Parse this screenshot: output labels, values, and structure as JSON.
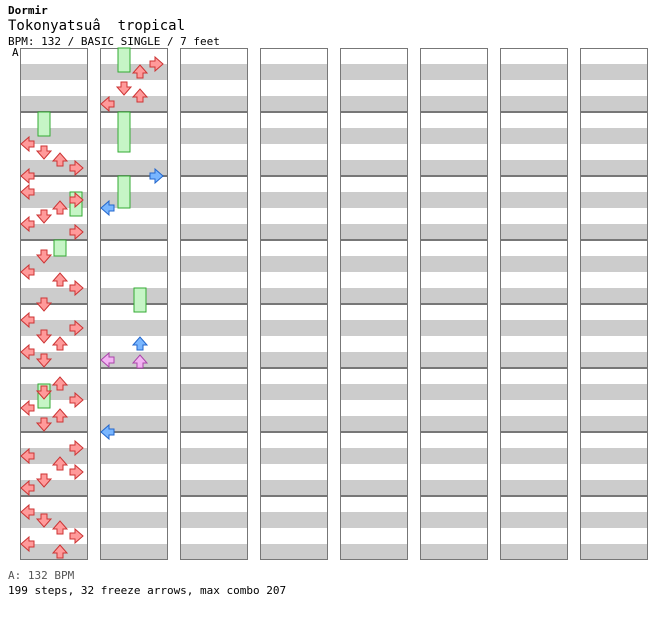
{
  "header": {
    "artist": "Dormir",
    "title": "Tokonyatsuâ  tropical",
    "meta": "BPM: 132 / BASIC SINGLE / 7 feet",
    "marker": "A"
  },
  "footer": {
    "bpm_legend": "A: 132 BPM",
    "stats": "199 steps, 32 freeze arrows, max combo 207"
  },
  "colors": {
    "quarter": "#ff9a9a",
    "eighth": "#79b6ff",
    "sixteenth": "#f3b3f3",
    "freeze": "#c6f5c6",
    "freeze_border": "#33aa33",
    "stripe": "#cccccc"
  },
  "chart_data": {
    "type": "step-chart",
    "columns": 8,
    "measures_per_column": 8,
    "lanes": [
      "left",
      "down",
      "up",
      "right"
    ],
    "notes": [
      [
        1,
        12,
        "L",
        "q"
      ],
      [
        1,
        16,
        "D",
        "q"
      ],
      [
        1,
        20,
        "U",
        "q"
      ],
      [
        1,
        24,
        "R",
        "q"
      ],
      [
        1,
        28,
        "L",
        "q"
      ],
      [
        2,
        4,
        "L",
        "q"
      ],
      [
        2,
        8,
        "R",
        "q"
      ],
      [
        2,
        12,
        "U",
        "q"
      ],
      [
        2,
        16,
        "D",
        "q"
      ],
      [
        2,
        20,
        "L",
        "q"
      ],
      [
        2,
        24,
        "R",
        "q"
      ],
      [
        3,
        4,
        "D",
        "q"
      ],
      [
        3,
        12,
        "L",
        "q"
      ],
      [
        3,
        16,
        "U",
        "q"
      ],
      [
        3,
        20,
        "R",
        "q"
      ],
      [
        3,
        28,
        "D",
        "q"
      ],
      [
        4,
        4,
        "L",
        "q"
      ],
      [
        4,
        8,
        "R",
        "q"
      ],
      [
        4,
        12,
        "D",
        "q"
      ],
      [
        4,
        16,
        "U",
        "q"
      ],
      [
        4,
        20,
        "L",
        "q"
      ],
      [
        4,
        24,
        "D",
        "q"
      ],
      [
        5,
        4,
        "U",
        "q"
      ],
      [
        5,
        8,
        "D",
        "q"
      ],
      [
        5,
        12,
        "R",
        "q"
      ],
      [
        5,
        16,
        "L",
        "q"
      ],
      [
        5,
        20,
        "U",
        "q"
      ],
      [
        5,
        24,
        "D",
        "q"
      ],
      [
        6,
        4,
        "R",
        "q"
      ],
      [
        6,
        8,
        "L",
        "q"
      ],
      [
        6,
        12,
        "U",
        "q"
      ],
      [
        6,
        16,
        "R",
        "q"
      ],
      [
        6,
        20,
        "D",
        "q"
      ],
      [
        6,
        24,
        "L",
        "q"
      ],
      [
        7,
        4,
        "L",
        "q"
      ],
      [
        7,
        8,
        "D",
        "q"
      ],
      [
        7,
        12,
        "U",
        "q"
      ],
      [
        7,
        16,
        "R",
        "q"
      ],
      [
        7,
        20,
        "L",
        "q"
      ],
      [
        7,
        24,
        "U",
        "q"
      ],
      [
        8,
        4,
        "R",
        "q"
      ],
      [
        8,
        8,
        "U",
        "q"
      ],
      [
        8,
        16,
        "D",
        "q"
      ],
      [
        8,
        20,
        "U",
        "q"
      ],
      [
        8,
        24,
        "L",
        "q"
      ]
    ],
    "eighth_notes": [
      [
        9,
        28,
        "R"
      ],
      [
        10,
        12,
        "L"
      ],
      [
        12,
        16,
        "U"
      ],
      [
        13,
        28,
        "L"
      ]
    ],
    "sixteenth_notes": [
      [
        12,
        24,
        "L"
      ],
      [
        12,
        25,
        "U"
      ]
    ],
    "freezes": [
      [
        1,
        0,
        "D",
        12
      ],
      [
        2,
        8,
        "R",
        12
      ],
      [
        3,
        0,
        "U",
        8
      ],
      [
        5,
        8,
        "D",
        12
      ],
      [
        8,
        0,
        "D",
        12
      ],
      [
        9,
        0,
        "D",
        20
      ],
      [
        10,
        0,
        "D",
        16
      ],
      [
        11,
        24,
        "U",
        12
      ]
    ]
  }
}
